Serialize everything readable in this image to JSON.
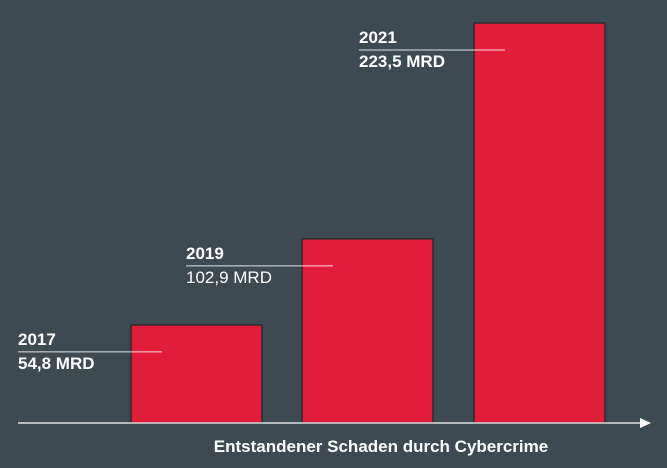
{
  "chart_data": {
    "type": "bar",
    "categories": [
      "2017",
      "2019",
      "2021"
    ],
    "values": [
      54.8,
      102.9,
      223.5
    ],
    "value_labels": [
      "54,8 MRD",
      "102,9 MRD",
      "223,5 MRD"
    ],
    "value_label_bold": [
      true,
      false,
      true
    ],
    "xlabel": "Entstandener Schaden durch Cybercrime",
    "ylabel": "",
    "ylim": [
      0,
      223.5
    ],
    "grid": false,
    "bar_color": "#e11d3b",
    "background": "#3d4a52"
  }
}
